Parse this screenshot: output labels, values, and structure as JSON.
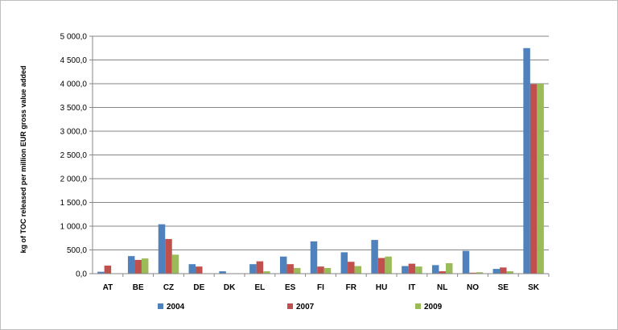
{
  "chart_data": {
    "type": "bar",
    "title": "",
    "xlabel": "",
    "ylabel": "kg of TOC released per million EUR gross value added",
    "ylim": [
      0,
      5000
    ],
    "yticks": [
      "0,0",
      "500,0",
      "1 000,0",
      "1 500,0",
      "2 000,0",
      "2 500,0",
      "3 000,0",
      "3 500,0",
      "4 000,0",
      "4 500,0",
      "5 000,0"
    ],
    "grid": true,
    "legend_position": "bottom",
    "categories": [
      "AT",
      "BE",
      "CZ",
      "DE",
      "DK",
      "EL",
      "ES",
      "FI",
      "FR",
      "HU",
      "IT",
      "NL",
      "NO",
      "SE",
      "SK"
    ],
    "series": [
      {
        "name": "2004",
        "color": "#4f81bd",
        "values": [
          40,
          370,
          1040,
          200,
          50,
          200,
          360,
          680,
          450,
          710,
          160,
          180,
          480,
          100,
          4750
        ]
      },
      {
        "name": "2007",
        "color": "#c0504d",
        "values": [
          170,
          290,
          730,
          150,
          0,
          260,
          200,
          150,
          250,
          330,
          210,
          50,
          20,
          130,
          3990
        ]
      },
      {
        "name": "2009",
        "color": "#9bbb59",
        "values": [
          0,
          320,
          400,
          0,
          0,
          50,
          120,
          120,
          160,
          360,
          150,
          220,
          30,
          50,
          4000
        ]
      }
    ]
  }
}
